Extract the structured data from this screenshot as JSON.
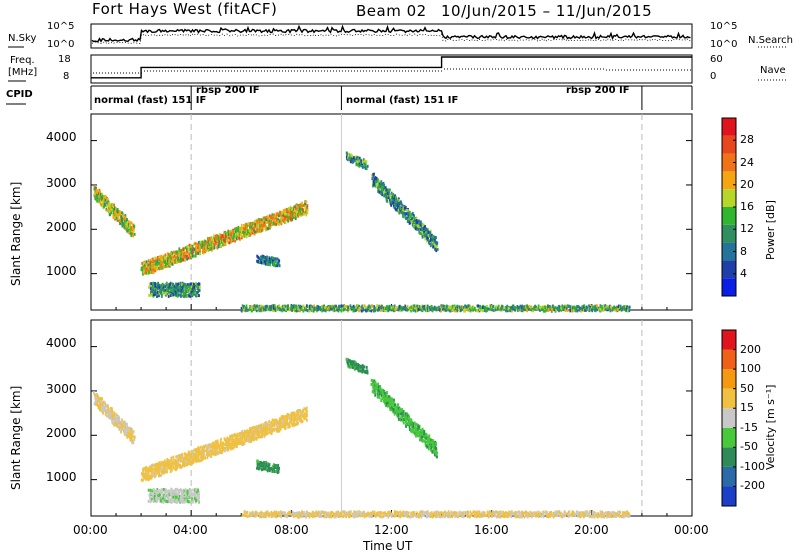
{
  "header": {
    "radar": "Fort Hays West (fitACF)",
    "beam": "Beam 02",
    "dates": "10/Jun/2015 – 11/Jun/2015"
  },
  "top_panels": {
    "nsky_label": "N.Sky",
    "nsky_ticks": [
      "10^5",
      "10^0"
    ],
    "nsearch_label": "N.Search",
    "nsearch_ticks": [
      "10^5",
      "10^0"
    ],
    "freq_label": "Freq.",
    "freq_unit": "[MHz]",
    "freq_ticks": [
      "18",
      "8"
    ],
    "nave_label": "Nave",
    "nave_ticks": [
      "60",
      "0"
    ],
    "cpid_label": "CPID",
    "cpid_segments": [
      {
        "label": "normal (fast) 151 IF",
        "start_h": 0,
        "end_h": 4
      },
      {
        "label": "rbsp 200 IF",
        "start_h": 4,
        "end_h": 10
      },
      {
        "label": "normal (fast) 151 IF",
        "start_h": 10,
        "end_h": 22
      },
      {
        "label": "rbsp 200 IF",
        "start_h": 22,
        "end_h": 24
      }
    ]
  },
  "axes": {
    "xlabel": "Time UT",
    "xticks": [
      "00:00",
      "04:00",
      "08:00",
      "12:00",
      "16:00",
      "20:00",
      "00:00"
    ],
    "ylabel": "Slant Range [km]",
    "yticks": [
      "1000",
      "2000",
      "3000",
      "4000"
    ]
  },
  "colorbars": {
    "power": {
      "label": "Power [dB]",
      "ticks": [
        "4",
        "8",
        "12",
        "16",
        "20",
        "24",
        "28"
      ],
      "colors": [
        "#0b1ee6",
        "#1e3fa8",
        "#24739b",
        "#2f8f5e",
        "#2fb52f",
        "#b7d62a",
        "#f5a512",
        "#f07417",
        "#e8461c",
        "#e0141c"
      ]
    },
    "velocity": {
      "label": "Velocity [m s⁻¹]",
      "ticks": [
        "200",
        "100",
        "50",
        "15",
        "-15",
        "-50",
        "-100",
        "-200"
      ],
      "colors": [
        "#1b3fc7",
        "#2a6aa8",
        "#2e8b57",
        "#48c93c",
        "#c8c8c8",
        "#f0c040",
        "#f59a10",
        "#f06018",
        "#e0141c"
      ]
    }
  },
  "chart_data": {
    "type": "heatmap",
    "title": "Fort Hays West (fitACF)",
    "xlabel": "Time UT",
    "ylabel": "Slant Range [km]",
    "xlim_hours": [
      0,
      24
    ],
    "ylim_km": [
      180,
      4600
    ],
    "frequency_mhz": [
      {
        "start_h": 0,
        "end_h": 2,
        "value": 10
      },
      {
        "start_h": 2,
        "end_h": 14,
        "value": 14
      },
      {
        "start_h": 14,
        "end_h": 24,
        "value": 18
      }
    ],
    "scatter_bands": [
      {
        "name": "band1",
        "h0": 0.1,
        "h1": 1.7,
        "km0": 2900,
        "km1": 2000,
        "power_db": 16,
        "velocity": -15
      },
      {
        "name": "band2",
        "h0": 2.0,
        "h1": 8.6,
        "km0": 1150,
        "km1": 2550,
        "power_db": 18,
        "velocity": -30
      },
      {
        "name": "band3",
        "h0": 2.3,
        "h1": 4.3,
        "km0": 700,
        "km1": 700,
        "power_db": 10,
        "velocity": 5
      },
      {
        "name": "band4",
        "h0": 10.2,
        "h1": 11.0,
        "km0": 3700,
        "km1": 3500,
        "power_db": 10,
        "velocity": 60
      },
      {
        "name": "band5",
        "h0": 11.2,
        "h1": 13.8,
        "km0": 3200,
        "km1": 1700,
        "power_db": 10,
        "velocity": 40
      },
      {
        "name": "band6",
        "h0": 6.6,
        "h1": 7.5,
        "km0": 1400,
        "km1": 1300,
        "power_db": 8,
        "velocity": 60
      },
      {
        "name": "ground",
        "h0": 6.0,
        "h1": 21.5,
        "km0": 280,
        "km1": 280,
        "power_db": 12,
        "velocity": -20
      }
    ]
  }
}
